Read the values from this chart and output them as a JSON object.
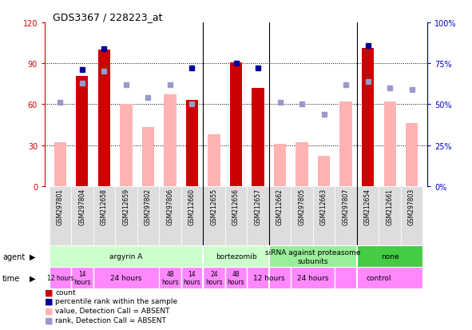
{
  "title": "GDS3367 / 228223_at",
  "samples": [
    "GSM297801",
    "GSM297804",
    "GSM212658",
    "GSM212659",
    "GSM297802",
    "GSM297806",
    "GSM212660",
    "GSM212655",
    "GSM212656",
    "GSM212657",
    "GSM212662",
    "GSM297805",
    "GSM212663",
    "GSM297807",
    "GSM212654",
    "GSM212661",
    "GSM297803"
  ],
  "count_values": [
    null,
    81,
    100,
    null,
    null,
    null,
    63,
    null,
    91,
    72,
    null,
    null,
    null,
    null,
    101,
    null,
    null
  ],
  "count_absent": [
    32,
    null,
    null,
    60,
    43,
    67,
    null,
    38,
    null,
    null,
    31,
    32,
    22,
    62,
    null,
    62,
    46
  ],
  "rank_values": [
    null,
    71,
    84,
    null,
    null,
    null,
    72,
    null,
    75,
    72,
    null,
    null,
    null,
    null,
    86,
    null,
    null
  ],
  "rank_absent": [
    51,
    63,
    70,
    62,
    54,
    62,
    50,
    null,
    null,
    null,
    51,
    50,
    44,
    62,
    64,
    60,
    59
  ],
  "ylim_left": [
    0,
    120
  ],
  "ylim_right": [
    0,
    100
  ],
  "yticks_left": [
    0,
    30,
    60,
    90,
    120
  ],
  "yticks_right": [
    0,
    25,
    50,
    75,
    100
  ],
  "ytick_labels_left": [
    "0",
    "30",
    "60",
    "90",
    "120"
  ],
  "ytick_labels_right": [
    "0%",
    "25%",
    "50%",
    "75%",
    "100%"
  ],
  "count_color": "#cc0000",
  "count_absent_color": "#ffb3b3",
  "rank_color": "#000099",
  "rank_absent_color": "#9999cc",
  "ylabel_left_color": "#cc0000",
  "ylabel_right_color": "#0000cc",
  "agent_groups": [
    {
      "label": "argyrin A",
      "start": 0,
      "end": 6,
      "color": "#ccffcc"
    },
    {
      "label": "bortezomib",
      "start": 7,
      "end": 9,
      "color": "#ccffcc"
    },
    {
      "label": "siRNA against proteasome\nsubunits",
      "start": 10,
      "end": 13,
      "color": "#99ee99"
    },
    {
      "label": "none",
      "start": 14,
      "end": 16,
      "color": "#44cc44"
    }
  ],
  "time_groups": [
    {
      "label": "12 hours",
      "start": 0,
      "end": 0,
      "color": "#ff88ff"
    },
    {
      "label": "14\nhours",
      "start": 1,
      "end": 1,
      "color": "#ff88ff"
    },
    {
      "label": "24 hours",
      "start": 2,
      "end": 4,
      "color": "#ff88ff"
    },
    {
      "label": "48\nhours",
      "start": 5,
      "end": 5,
      "color": "#ff88ff"
    },
    {
      "label": "14\nhours",
      "start": 6,
      "end": 6,
      "color": "#ff88ff"
    },
    {
      "label": "24\nhours",
      "start": 7,
      "end": 7,
      "color": "#ff88ff"
    },
    {
      "label": "48\nhours",
      "start": 8,
      "end": 8,
      "color": "#ff88ff"
    },
    {
      "label": "12 hours",
      "start": 9,
      "end": 10,
      "color": "#ff88ff"
    },
    {
      "label": "24 hours",
      "start": 11,
      "end": 12,
      "color": "#ff88ff"
    },
    {
      "label": "control",
      "start": 13,
      "end": 16,
      "color": "#ff88ff"
    }
  ],
  "group_separators": [
    6.5,
    9.5,
    13.5
  ],
  "time_separators": [
    0.5,
    1.5,
    5.5,
    6.5,
    7.5,
    8.5,
    10.5,
    12.5
  ]
}
